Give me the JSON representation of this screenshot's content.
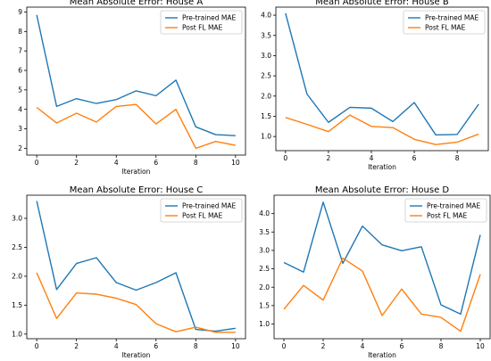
{
  "colors": {
    "pretrained": "#1f77b4",
    "postfl": "#ff7f0e"
  },
  "chart_data": [
    {
      "type": "line",
      "title": "Mean Absolute Error: House A",
      "xlabel": "Iteration",
      "ylabel": "",
      "x": [
        0,
        1,
        2,
        3,
        4,
        5,
        6,
        7,
        8,
        9,
        10
      ],
      "xlim": [
        -0.5,
        10.5
      ],
      "ylim": [
        1.65,
        9.25
      ],
      "xticks": [
        0,
        2,
        4,
        6,
        8,
        10
      ],
      "yticks": [
        2,
        3,
        4,
        5,
        6,
        7,
        8,
        9
      ],
      "legend": "top-right",
      "series": [
        {
          "name": "Pre-trained MAE",
          "values": [
            8.85,
            4.15,
            4.55,
            4.3,
            4.5,
            4.95,
            4.7,
            5.5,
            3.1,
            2.7,
            2.65
          ]
        },
        {
          "name": "Post FL MAE",
          "values": [
            4.1,
            3.3,
            3.8,
            3.35,
            4.15,
            4.25,
            3.25,
            4.0,
            2.0,
            2.35,
            2.15
          ]
        }
      ]
    },
    {
      "type": "line",
      "title": "Mean Absolute Error: House B",
      "xlabel": "Iteration",
      "ylabel": "",
      "x": [
        0,
        1,
        2,
        3,
        4,
        5,
        6,
        7,
        8,
        9
      ],
      "xlim": [
        -0.45,
        9.45
      ],
      "ylim": [
        0.65,
        4.2
      ],
      "xticks": [
        0,
        2,
        4,
        6,
        8
      ],
      "yticks": [
        1.0,
        1.5,
        2.0,
        2.5,
        3.0,
        3.5,
        4.0
      ],
      "legend": "top-right",
      "series": [
        {
          "name": "Pre-trained MAE",
          "values": [
            4.05,
            2.05,
            1.35,
            1.72,
            1.7,
            1.37,
            1.84,
            1.04,
            1.05,
            1.8
          ]
        },
        {
          "name": "Post FL MAE",
          "values": [
            1.47,
            1.3,
            1.12,
            1.53,
            1.25,
            1.22,
            0.93,
            0.8,
            0.86,
            1.06
          ]
        }
      ]
    },
    {
      "type": "line",
      "title": "Mean Absolute Error: House C",
      "xlabel": "Iteration",
      "ylabel": "",
      "x": [
        0,
        1,
        2,
        3,
        4,
        5,
        6,
        7,
        8,
        9,
        10
      ],
      "xlim": [
        -0.5,
        10.5
      ],
      "ylim": [
        0.92,
        3.4
      ],
      "xticks": [
        0,
        2,
        4,
        6,
        8,
        10
      ],
      "yticks": [
        1.0,
        1.5,
        2.0,
        2.5,
        3.0
      ],
      "legend": "top-right",
      "series": [
        {
          "name": "Pre-trained MAE",
          "values": [
            3.3,
            1.77,
            2.22,
            2.32,
            1.89,
            1.76,
            1.89,
            2.06,
            1.08,
            1.05,
            1.1
          ]
        },
        {
          "name": "Post FL MAE",
          "values": [
            2.06,
            1.27,
            1.71,
            1.69,
            1.62,
            1.51,
            1.18,
            1.04,
            1.12,
            1.03,
            1.03
          ]
        }
      ]
    },
    {
      "type": "line",
      "title": "Mean Absolute Error: House D",
      "xlabel": "Iteration",
      "ylabel": "",
      "x": [
        0,
        1,
        2,
        3,
        4,
        5,
        6,
        7,
        8,
        9,
        10
      ],
      "xlim": [
        -0.5,
        10.5
      ],
      "ylim": [
        0.6,
        4.5
      ],
      "xticks": [
        0,
        2,
        4,
        6,
        8,
        10
      ],
      "yticks": [
        1.0,
        1.5,
        2.0,
        2.5,
        3.0,
        3.5,
        4.0
      ],
      "legend": "top-right",
      "series": [
        {
          "name": "Pre-trained MAE",
          "values": [
            2.67,
            2.41,
            4.31,
            2.65,
            3.66,
            3.15,
            2.99,
            3.1,
            1.52,
            1.27,
            3.42
          ]
        },
        {
          "name": "Post FL MAE",
          "values": [
            1.4,
            2.05,
            1.65,
            2.79,
            2.44,
            1.23,
            1.95,
            1.27,
            1.18,
            0.8,
            2.35
          ]
        }
      ]
    }
  ]
}
